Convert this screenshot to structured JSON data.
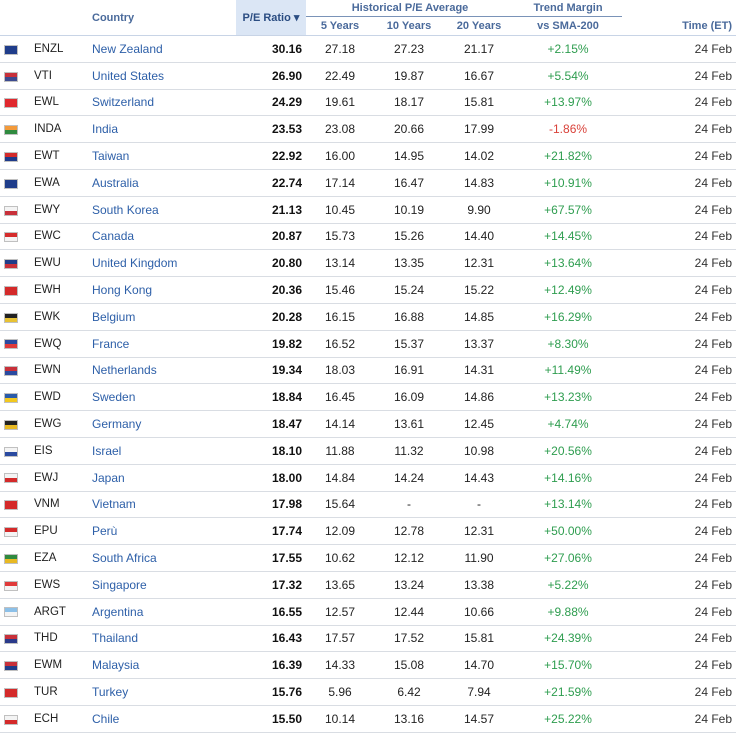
{
  "header": {
    "country": "Country",
    "pe_ratio": "P/E Ratio",
    "sort_indicator": "▾",
    "historical_group": "Historical P/E Average",
    "y5": "5 Years",
    "y10": "10 Years",
    "y20": "20 Years",
    "trend_group": "Trend Margin",
    "sma": "vs SMA-200",
    "time": "Time (ET)"
  },
  "rows": [
    {
      "sym": "ENZL",
      "country": "New Zealand",
      "pe": "30.16",
      "y5": "27.18",
      "y10": "27.23",
      "y20": "21.17",
      "trend": "+2.15%",
      "time": "24 Feb",
      "flag": [
        "#1f3d8a",
        "#1f3d8a"
      ],
      "dir": "pos"
    },
    {
      "sym": "VTI",
      "country": "United States",
      "pe": "26.90",
      "y5": "22.49",
      "y10": "19.87",
      "y20": "16.67",
      "trend": "+5.54%",
      "time": "24 Feb",
      "flag": [
        "#c8303a",
        "#3c4a8f"
      ],
      "dir": "pos"
    },
    {
      "sym": "EWL",
      "country": "Switzerland",
      "pe": "24.29",
      "y5": "19.61",
      "y10": "18.17",
      "y20": "15.81",
      "trend": "+13.97%",
      "time": "24 Feb",
      "flag": [
        "#e0282e",
        "#e0282e"
      ],
      "dir": "pos"
    },
    {
      "sym": "INDA",
      "country": "India",
      "pe": "23.53",
      "y5": "23.08",
      "y10": "20.66",
      "y20": "17.99",
      "trend": "-1.86%",
      "time": "24 Feb",
      "flag": [
        "#f39a3a",
        "#2f8a3f"
      ],
      "dir": "neg"
    },
    {
      "sym": "EWT",
      "country": "Taiwan",
      "pe": "22.92",
      "y5": "16.00",
      "y10": "14.95",
      "y20": "14.02",
      "trend": "+21.82%",
      "time": "24 Feb",
      "flag": [
        "#d42a2a",
        "#1e3a8a"
      ],
      "dir": "pos"
    },
    {
      "sym": "EWA",
      "country": "Australia",
      "pe": "22.74",
      "y5": "17.14",
      "y10": "16.47",
      "y20": "14.83",
      "trend": "+10.91%",
      "time": "24 Feb",
      "flag": [
        "#1f3d8a",
        "#1f3d8a"
      ],
      "dir": "pos"
    },
    {
      "sym": "EWY",
      "country": "South Korea",
      "pe": "21.13",
      "y5": "10.45",
      "y10": "10.19",
      "y20": "9.90",
      "trend": "+67.57%",
      "time": "24 Feb",
      "flag": [
        "#f4f4f4",
        "#c8303a"
      ],
      "dir": "pos"
    },
    {
      "sym": "EWC",
      "country": "Canada",
      "pe": "20.87",
      "y5": "15.73",
      "y10": "15.26",
      "y20": "14.40",
      "trend": "+14.45%",
      "time": "24 Feb",
      "flag": [
        "#d52b2b",
        "#f4f4f4"
      ],
      "dir": "pos"
    },
    {
      "sym": "EWU",
      "country": "United Kingdom",
      "pe": "20.80",
      "y5": "13.14",
      "y10": "13.35",
      "y20": "12.31",
      "trend": "+13.64%",
      "time": "24 Feb",
      "flag": [
        "#1f3d8a",
        "#c8303a"
      ],
      "dir": "pos"
    },
    {
      "sym": "EWH",
      "country": "Hong Kong",
      "pe": "20.36",
      "y5": "15.46",
      "y10": "15.24",
      "y20": "15.22",
      "trend": "+12.49%",
      "time": "24 Feb",
      "flag": [
        "#d42a2a",
        "#d42a2a"
      ],
      "dir": "pos"
    },
    {
      "sym": "EWK",
      "country": "Belgium",
      "pe": "20.28",
      "y5": "16.15",
      "y10": "16.88",
      "y20": "14.85",
      "trend": "+16.29%",
      "time": "24 Feb",
      "flag": [
        "#222222",
        "#e8c233"
      ],
      "dir": "pos"
    },
    {
      "sym": "EWQ",
      "country": "France",
      "pe": "19.82",
      "y5": "16.52",
      "y10": "15.37",
      "y20": "13.37",
      "trend": "+8.30%",
      "time": "24 Feb",
      "flag": [
        "#2a4aa0",
        "#e03a3a"
      ],
      "dir": "pos"
    },
    {
      "sym": "EWN",
      "country": "Netherlands",
      "pe": "19.34",
      "y5": "18.03",
      "y10": "16.91",
      "y20": "14.31",
      "trend": "+11.49%",
      "time": "24 Feb",
      "flag": [
        "#c8303a",
        "#2a4aa0"
      ],
      "dir": "pos"
    },
    {
      "sym": "EWD",
      "country": "Sweden",
      "pe": "18.84",
      "y5": "16.45",
      "y10": "16.09",
      "y20": "14.86",
      "trend": "+13.23%",
      "time": "24 Feb",
      "flag": [
        "#2a5ba8",
        "#f2c81e"
      ],
      "dir": "pos"
    },
    {
      "sym": "EWG",
      "country": "Germany",
      "pe": "18.47",
      "y5": "14.14",
      "y10": "13.61",
      "y20": "12.45",
      "trend": "+4.74%",
      "time": "24 Feb",
      "flag": [
        "#222222",
        "#e8b923"
      ],
      "dir": "pos"
    },
    {
      "sym": "EIS",
      "country": "Israel",
      "pe": "18.10",
      "y5": "11.88",
      "y10": "11.32",
      "y20": "10.98",
      "trend": "+20.56%",
      "time": "24 Feb",
      "flag": [
        "#f4f4f4",
        "#2a4aa0"
      ],
      "dir": "pos"
    },
    {
      "sym": "EWJ",
      "country": "Japan",
      "pe": "18.00",
      "y5": "14.84",
      "y10": "14.24",
      "y20": "14.43",
      "trend": "+14.16%",
      "time": "24 Feb",
      "flag": [
        "#f4f4f4",
        "#d42a2a"
      ],
      "dir": "pos"
    },
    {
      "sym": "VNM",
      "country": "Vietnam",
      "pe": "17.98",
      "y5": "15.64",
      "y10": "-",
      "y20": "-",
      "trend": "+13.14%",
      "time": "24 Feb",
      "flag": [
        "#d42a2a",
        "#d42a2a"
      ],
      "dir": "pos"
    },
    {
      "sym": "EPU",
      "country": "Perù",
      "pe": "17.74",
      "y5": "12.09",
      "y10": "12.78",
      "y20": "12.31",
      "trend": "+50.00%",
      "time": "24 Feb",
      "flag": [
        "#d42a2a",
        "#f4f4f4"
      ],
      "dir": "pos"
    },
    {
      "sym": "EZA",
      "country": "South Africa",
      "pe": "17.55",
      "y5": "10.62",
      "y10": "12.12",
      "y20": "11.90",
      "trend": "+27.06%",
      "time": "24 Feb",
      "flag": [
        "#2f8a3f",
        "#e8b923"
      ],
      "dir": "pos"
    },
    {
      "sym": "EWS",
      "country": "Singapore",
      "pe": "17.32",
      "y5": "13.65",
      "y10": "13.24",
      "y20": "13.38",
      "trend": "+5.22%",
      "time": "24 Feb",
      "flag": [
        "#e03a3a",
        "#f4f4f4"
      ],
      "dir": "pos"
    },
    {
      "sym": "ARGT",
      "country": "Argentina",
      "pe": "16.55",
      "y5": "12.57",
      "y10": "12.44",
      "y20": "10.66",
      "trend": "+9.88%",
      "time": "24 Feb",
      "flag": [
        "#8cc0e8",
        "#f4f4f4"
      ],
      "dir": "pos"
    },
    {
      "sym": "THD",
      "country": "Thailand",
      "pe": "16.43",
      "y5": "17.57",
      "y10": "17.52",
      "y20": "15.81",
      "trend": "+24.39%",
      "time": "24 Feb",
      "flag": [
        "#c8303a",
        "#2a3a8a"
      ],
      "dir": "pos"
    },
    {
      "sym": "EWM",
      "country": "Malaysia",
      "pe": "16.39",
      "y5": "14.33",
      "y10": "15.08",
      "y20": "14.70",
      "trend": "+15.70%",
      "time": "24 Feb",
      "flag": [
        "#c8303a",
        "#1f3d8a"
      ],
      "dir": "pos"
    },
    {
      "sym": "TUR",
      "country": "Turkey",
      "pe": "15.76",
      "y5": "5.96",
      "y10": "6.42",
      "y20": "7.94",
      "trend": "+21.59%",
      "time": "24 Feb",
      "flag": [
        "#d42a2a",
        "#d42a2a"
      ],
      "dir": "pos"
    },
    {
      "sym": "ECH",
      "country": "Chile",
      "pe": "15.50",
      "y5": "10.14",
      "y10": "13.16",
      "y20": "14.57",
      "trend": "+25.22%",
      "time": "24 Feb",
      "flag": [
        "#f4f4f4",
        "#d42a2a"
      ],
      "dir": "pos"
    }
  ]
}
